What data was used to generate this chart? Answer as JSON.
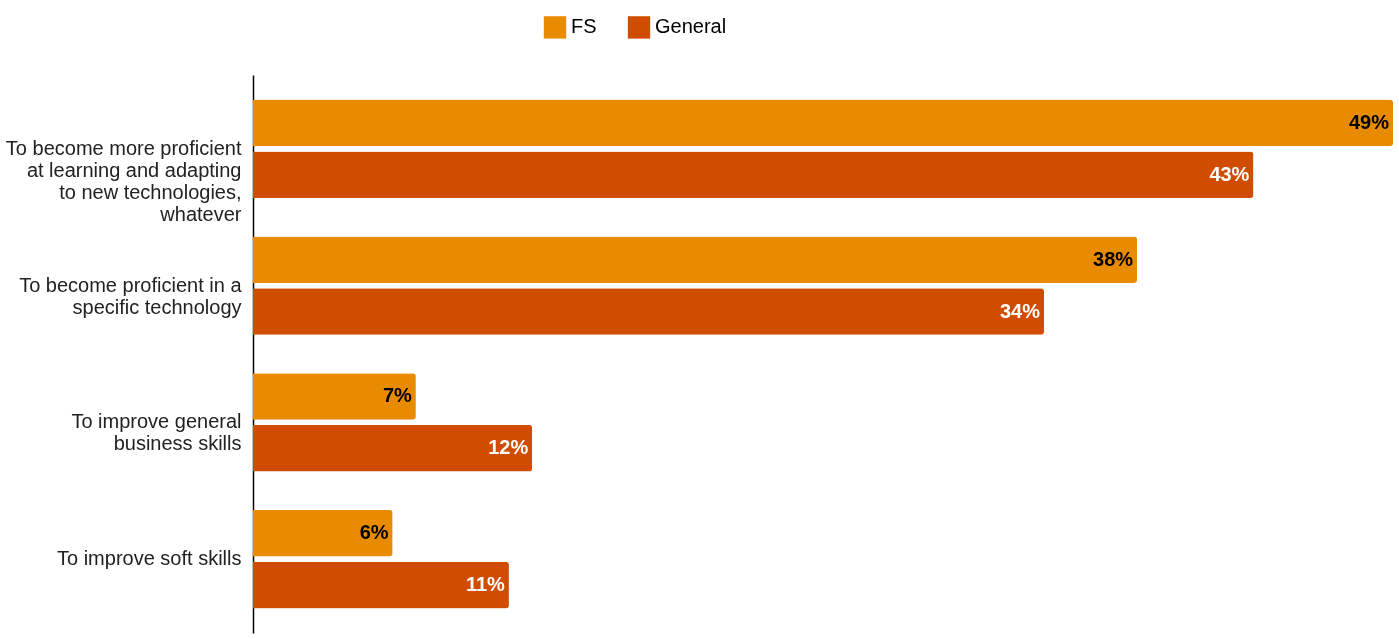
{
  "chart_data": {
    "type": "bar",
    "orientation": "horizontal",
    "legend": "top",
    "categories": [
      "To become more proficient at learning and adapting to new technologies, whatever",
      "To become proficient in a specific technology",
      "To improve general business skills",
      "To improve soft skills"
    ],
    "series": [
      {
        "name": "FS",
        "color": "#e98b00",
        "values": [
          49,
          38,
          7,
          6
        ],
        "value_labels": [
          "49%",
          "38%",
          "7%",
          "6%"
        ]
      },
      {
        "name": "General",
        "color": "#d04c00",
        "values": [
          43,
          34,
          12,
          11
        ],
        "value_labels": [
          "43%",
          "34%",
          "12%",
          "11%"
        ]
      }
    ]
  }
}
